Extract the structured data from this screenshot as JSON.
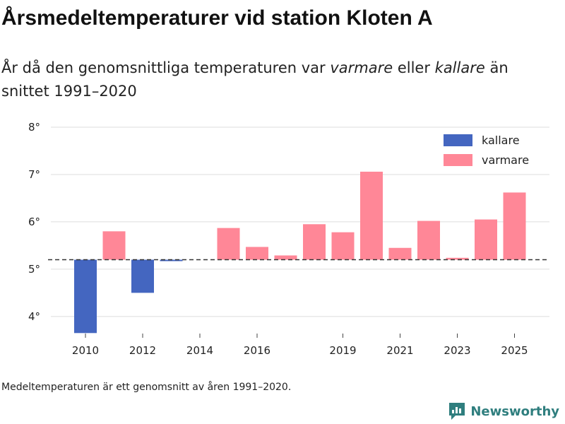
{
  "title": "Årsmedeltemperaturer vid station Kloten A",
  "subtitle": {
    "part1": "År då den genomsnittliga temperaturen var ",
    "warmer_word": "varmare",
    "part2": " eller ",
    "colder_word": "kallare",
    "part3": " än snittet 1991–2020"
  },
  "footnote": "Medeltemperaturen är ett genomsnitt av åren 1991–2020.",
  "brand": "Newsworthy",
  "colors": {
    "kallare": "#4466c0",
    "varmare": "#ff8797",
    "baseline": "#333333",
    "brand": "#2f7e7e"
  },
  "chart_data": {
    "type": "bar",
    "baseline": 5.2,
    "categories": [
      "2010",
      "2011",
      "2012",
      "2013",
      "2014",
      "2015",
      "2016",
      "2017",
      "2018",
      "2019",
      "2020",
      "2021",
      "2022",
      "2023",
      "2024",
      "2025"
    ],
    "values": [
      3.65,
      5.8,
      4.5,
      5.17,
      null,
      5.87,
      5.47,
      5.29,
      5.95,
      5.78,
      7.06,
      5.45,
      6.02,
      5.24,
      6.05,
      6.62
    ],
    "tick_labels": [
      "2010",
      "2012",
      "2014",
      "2016",
      "2019",
      "2021",
      "2023",
      "2025"
    ],
    "y_ticks": [
      4,
      5,
      6,
      7,
      8
    ],
    "y_tick_labels": [
      "4°",
      "5°",
      "6°",
      "7°",
      "8°"
    ],
    "ylim": [
      3.55,
      8.0
    ],
    "legend": [
      {
        "key": "kallare",
        "label": "kallare"
      },
      {
        "key": "varmare",
        "label": "varmare"
      }
    ],
    "legend_position": "top-right",
    "xlabel": "",
    "ylabel": ""
  }
}
